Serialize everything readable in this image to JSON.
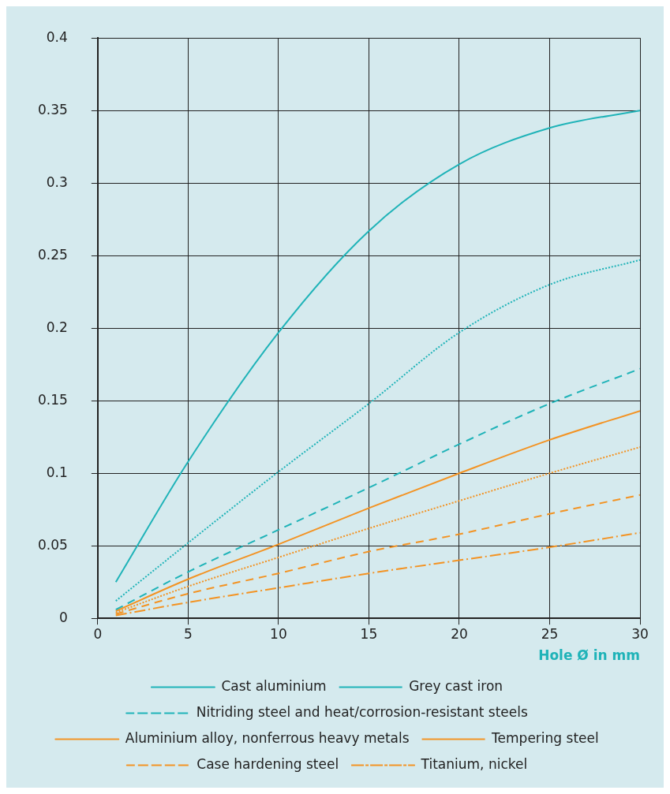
{
  "chart_data": {
    "type": "line",
    "xlabel": "Hole Ø in mm",
    "x": [
      1,
      5,
      10,
      15,
      20,
      25,
      30
    ],
    "series": [
      {
        "name": "Cast aluminium",
        "color": "#1fb3b8",
        "line_style": "solid",
        "values": [
          0.025,
          0.108,
          0.197,
          0.267,
          0.313,
          0.338,
          0.35
        ]
      },
      {
        "name": "Grey cast iron",
        "color": "#1fb3b8",
        "line_style": "dotted",
        "values": [
          0.012,
          0.052,
          0.101,
          0.148,
          0.197,
          0.23,
          0.247
        ]
      },
      {
        "name": "Nitriding steel and heat/corrosion-resistant steels",
        "color": "#1fb3b8",
        "line_style": "dashed",
        "values": [
          0.006,
          0.032,
          0.061,
          0.09,
          0.12,
          0.148,
          0.172
        ]
      },
      {
        "name": "Aluminium alloy, nonferrous heavy metals",
        "color": "#f39323",
        "line_style": "solid",
        "values": [
          0.005,
          0.027,
          0.051,
          0.076,
          0.1,
          0.123,
          0.143
        ]
      },
      {
        "name": "Tempering steel",
        "color": "#f39323",
        "line_style": "dotted",
        "values": [
          0.004,
          0.022,
          0.042,
          0.062,
          0.081,
          0.1,
          0.118
        ]
      },
      {
        "name": "Case hardening steel",
        "color": "#f39323",
        "line_style": "dashed",
        "values": [
          0.003,
          0.017,
          0.031,
          0.046,
          0.058,
          0.072,
          0.085
        ]
      },
      {
        "name": "Titanium, nickel",
        "color": "#f39323",
        "line_style": "dashdot",
        "values": [
          0.002,
          0.011,
          0.021,
          0.031,
          0.04,
          0.049,
          0.059
        ]
      }
    ],
    "xlim": [
      0,
      30
    ],
    "xticks": [
      0,
      5,
      10,
      15,
      20,
      25,
      30
    ],
    "ylim": [
      0,
      0.4
    ],
    "yticks": [
      0,
      0.05,
      0.1,
      0.15,
      0.2,
      0.25,
      0.3,
      0.35,
      0.4
    ],
    "grid": true,
    "legend": "bottom",
    "marker": "none"
  }
}
